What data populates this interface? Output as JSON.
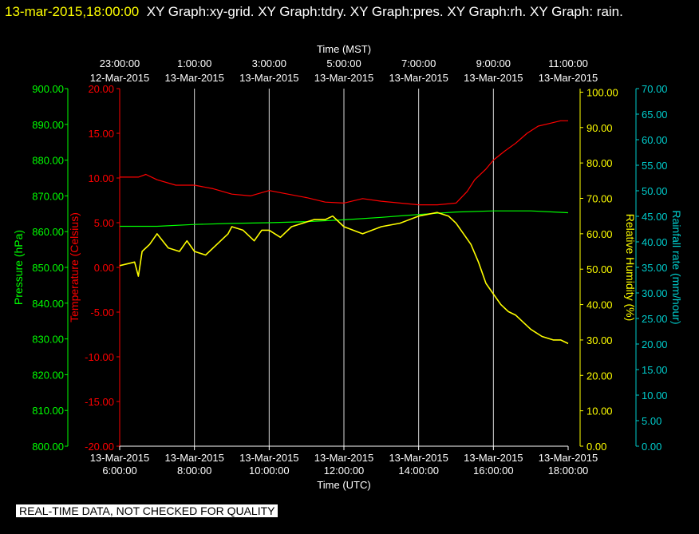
{
  "header": {
    "timestamp": "13-mar-2015,18:00:00",
    "graphs": "XY Graph:xy-grid.  XY Graph:tdry.  XY Graph:pres.  XY Graph:rh.  XY Graph: rain."
  },
  "footer": {
    "qc_note": "REAL-TIME DATA, NOT CHECKED FOR QUALITY"
  },
  "colors": {
    "background": "#000000",
    "grid": "#ffffff",
    "temperature": "#ff0000",
    "pressure": "#00ff00",
    "humidity": "#ffff00",
    "rain": "#00cccc",
    "text": "#ffffff"
  },
  "chart_data": {
    "type": "line",
    "x_bottom": {
      "label": "Time (UTC)",
      "range": [
        6,
        18
      ],
      "ticks": [
        {
          "value": 6,
          "date": "13-Mar-2015",
          "time": "6:00:00"
        },
        {
          "value": 8,
          "date": "13-Mar-2015",
          "time": "8:00:00"
        },
        {
          "value": 10,
          "date": "13-Mar-2015",
          "time": "10:00:00"
        },
        {
          "value": 12,
          "date": "13-Mar-2015",
          "time": "12:00:00"
        },
        {
          "value": 14,
          "date": "13-Mar-2015",
          "time": "14:00:00"
        },
        {
          "value": 16,
          "date": "13-Mar-2015",
          "time": "16:00:00"
        },
        {
          "value": 18,
          "date": "13-Mar-2015",
          "time": "18:00:00"
        }
      ]
    },
    "x_top": {
      "label": "Time (MST)",
      "ticks": [
        {
          "value": 6,
          "time": "23:00:00",
          "date": "12-Mar-2015"
        },
        {
          "value": 8,
          "time": "1:00:00",
          "date": "13-Mar-2015"
        },
        {
          "value": 10,
          "time": "3:00:00",
          "date": "13-Mar-2015"
        },
        {
          "value": 12,
          "time": "5:00:00",
          "date": "13-Mar-2015"
        },
        {
          "value": 14,
          "time": "7:00:00",
          "date": "13-Mar-2015"
        },
        {
          "value": 16,
          "time": "9:00:00",
          "date": "13-Mar-2015"
        },
        {
          "value": 18,
          "time": "11:00:00",
          "date": "13-Mar-2015"
        }
      ]
    },
    "grid": {
      "vertical": true,
      "horizontal": false
    },
    "axes": [
      {
        "id": "pressure",
        "label": "Pressure (hPa)",
        "side": "left-outer",
        "range": [
          800,
          900
        ],
        "ticks": [
          "800.00",
          "810.00",
          "820.00",
          "830.00",
          "840.00",
          "850.00",
          "860.00",
          "870.00",
          "880.00",
          "890.00",
          "900.00"
        ]
      },
      {
        "id": "temperature",
        "label": "Temperature (Celsius)",
        "side": "left-inner",
        "range": [
          -20,
          20
        ],
        "ticks": [
          "-20.00",
          "-15.00",
          "-10.00",
          "-5.00",
          "0.00",
          "5.00",
          "10.00",
          "15.00",
          "20.00"
        ]
      },
      {
        "id": "humidity",
        "label": "Relative Humidity (%)",
        "side": "right-inner",
        "range": [
          0,
          101
        ],
        "ticks": [
          "0.00",
          "10.00",
          "20.00",
          "30.00",
          "40.00",
          "50.00",
          "60.00",
          "70.00",
          "80.00",
          "90.00",
          "100.00"
        ]
      },
      {
        "id": "rain",
        "label": "Rainfall rate (mm/hour)",
        "side": "right-outer",
        "range": [
          0,
          70
        ],
        "ticks": [
          "0.00",
          "5.00",
          "10.00",
          "15.00",
          "20.00",
          "25.00",
          "30.00",
          "35.00",
          "40.00",
          "45.00",
          "50.00",
          "55.00",
          "60.00",
          "65.00",
          "70.00"
        ]
      }
    ],
    "series": [
      {
        "axis": "temperature",
        "x": [
          6.0,
          6.5,
          6.7,
          7.0,
          7.5,
          8.0,
          8.5,
          9.0,
          9.5,
          10.0,
          10.5,
          11.0,
          11.5,
          12.0,
          12.5,
          13.0,
          14.0,
          14.5,
          15.0,
          15.3,
          15.5,
          15.8,
          16.0,
          16.3,
          16.6,
          16.9,
          17.2,
          17.5,
          17.8,
          18.0
        ],
        "y": [
          10.1,
          10.1,
          10.4,
          9.8,
          9.2,
          9.2,
          8.8,
          8.2,
          8.0,
          8.6,
          8.2,
          7.8,
          7.3,
          7.2,
          7.7,
          7.4,
          7.0,
          7.0,
          7.2,
          8.5,
          9.8,
          11.0,
          12.0,
          13.0,
          13.9,
          15.0,
          15.8,
          16.1,
          16.4,
          16.4
        ]
      },
      {
        "axis": "pressure",
        "x": [
          6,
          7,
          8,
          9,
          10,
          11,
          12,
          13,
          14,
          15,
          16,
          17,
          18
        ],
        "y": [
          861.5,
          861.5,
          862,
          862.3,
          862.5,
          862.8,
          863.3,
          864,
          864.8,
          865.5,
          865.8,
          865.8,
          865.3
        ]
      },
      {
        "axis": "humidity",
        "x": [
          6.0,
          6.4,
          6.5,
          6.6,
          6.8,
          7.0,
          7.3,
          7.6,
          7.8,
          8.0,
          8.3,
          8.6,
          8.9,
          9.0,
          9.3,
          9.6,
          9.8,
          10.0,
          10.3,
          10.6,
          10.9,
          11.2,
          11.5,
          11.7,
          12.0,
          12.5,
          13.0,
          13.5,
          14.0,
          14.5,
          14.8,
          15.0,
          15.2,
          15.4,
          15.6,
          15.8,
          16.0,
          16.2,
          16.4,
          16.6,
          16.8,
          17.0,
          17.3,
          17.6,
          17.8,
          18.0
        ],
        "y": [
          51,
          52,
          48,
          55,
          57,
          60,
          56,
          55,
          58,
          55,
          54,
          57,
          60,
          62,
          61,
          58,
          61,
          61,
          59,
          62,
          63,
          64,
          64,
          65,
          62,
          60,
          62,
          63,
          65,
          66,
          65,
          63,
          60,
          57,
          52,
          46,
          43,
          40,
          38,
          37,
          35,
          33,
          31,
          30,
          30,
          29
        ]
      }
    ]
  }
}
